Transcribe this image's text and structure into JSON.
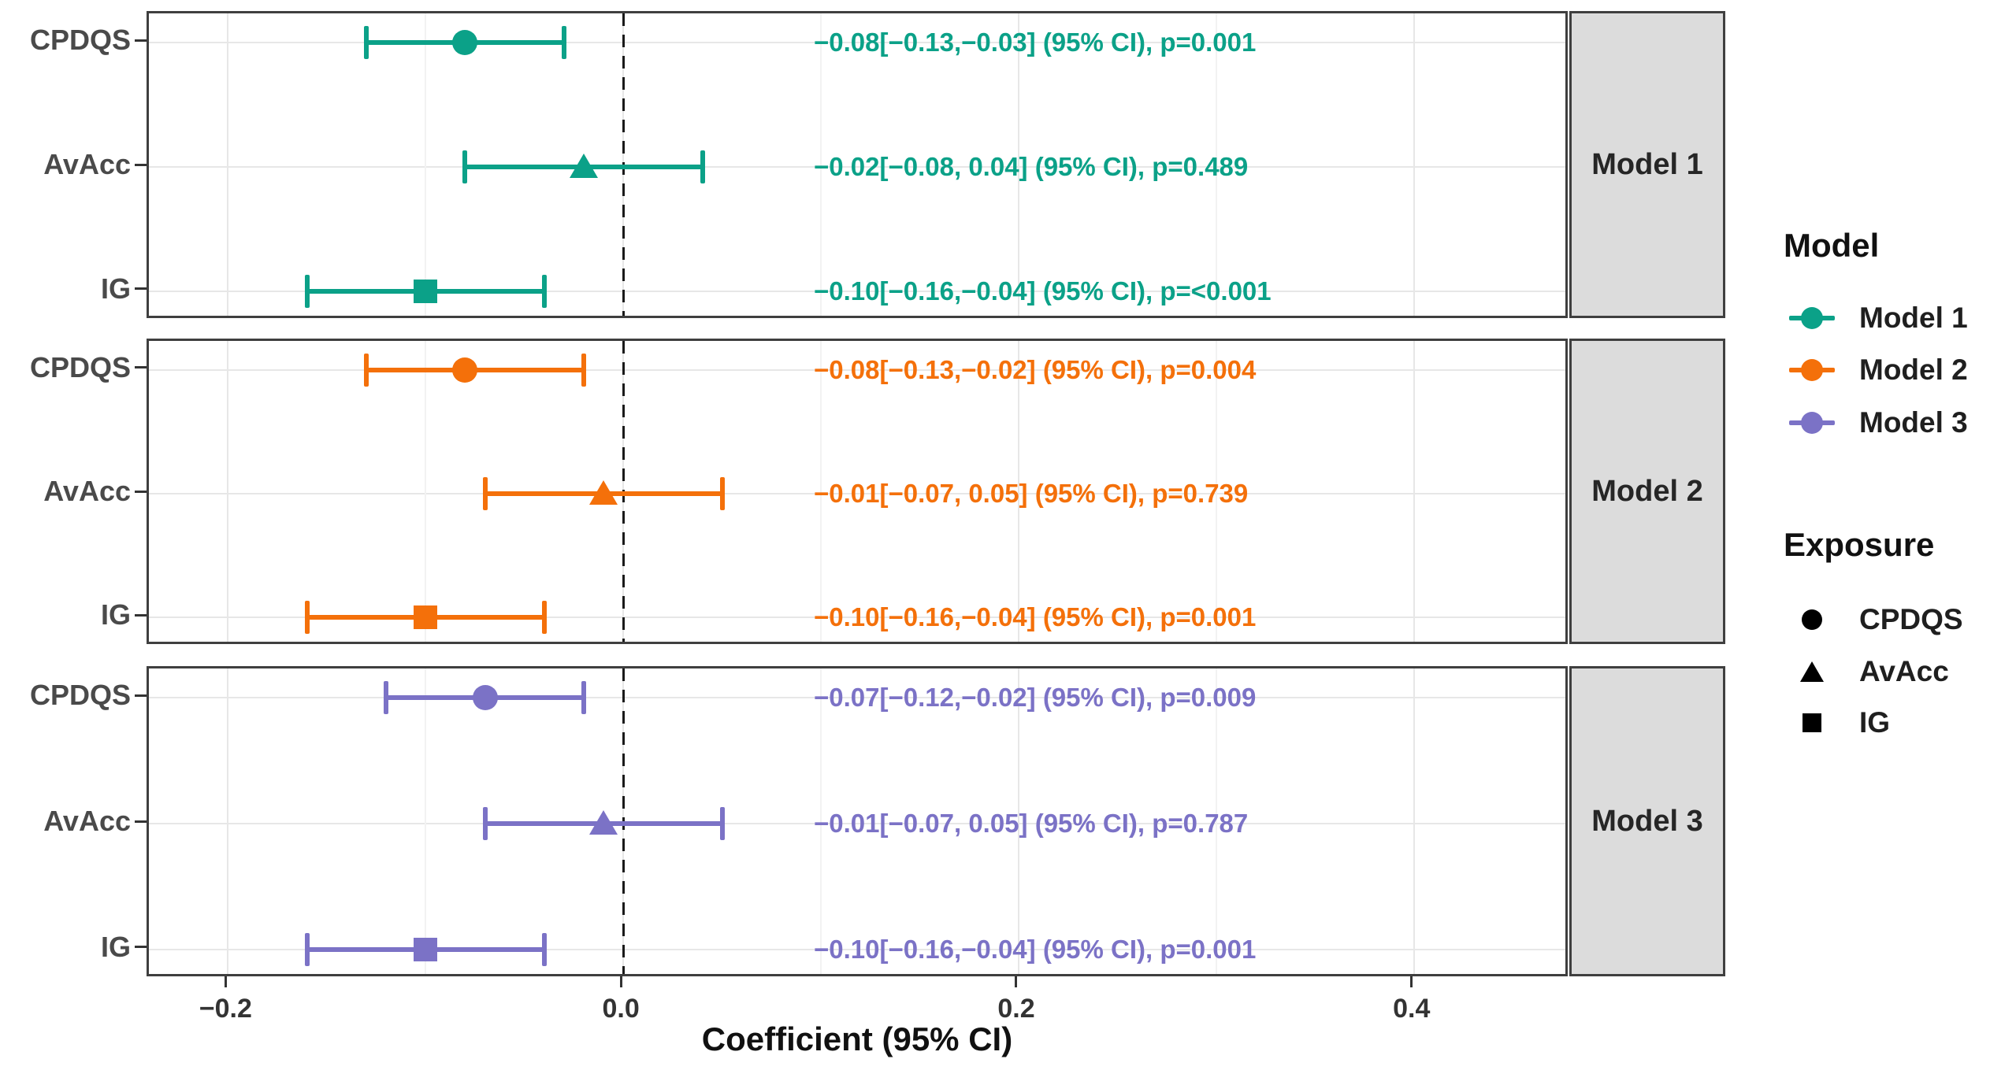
{
  "chart_data": {
    "type": "scatter",
    "variant": "faceted-forest-plot",
    "title": "",
    "xlabel": "Coefficient (95% CI)",
    "x_tick_labels": [
      "−0.2",
      "0.0",
      "0.2",
      "0.4"
    ],
    "x_tick_values": [
      -0.2,
      0.0,
      0.2,
      0.4
    ],
    "x_minor_gridlines": [
      -0.1,
      0.1,
      0.3
    ],
    "xlim": [
      -0.24,
      0.479
    ],
    "zero_reference_line": 0,
    "grid": true,
    "y_categories": [
      "CPDQS",
      "AvAcc",
      "IG"
    ],
    "panels": [
      {
        "facet_label": "Model 1",
        "color": "#0ba188",
        "rows": [
          {
            "exposure": "CPDQS",
            "shape": "circle",
            "estimate": -0.08,
            "ci_low": -0.13,
            "ci_high": -0.03,
            "p": "0.001",
            "annotation": "−0.08[−0.13,−0.03] (95% CI), p=0.001"
          },
          {
            "exposure": "AvAcc",
            "shape": "triangle",
            "estimate": -0.02,
            "ci_low": -0.08,
            "ci_high": 0.04,
            "p": "0.489",
            "annotation": "−0.02[−0.08, 0.04] (95% CI), p=0.489"
          },
          {
            "exposure": "IG",
            "shape": "square",
            "estimate": -0.1,
            "ci_low": -0.16,
            "ci_high": -0.04,
            "p": "<0.001",
            "annotation": "−0.10[−0.16,−0.04] (95% CI), p=<0.001"
          }
        ]
      },
      {
        "facet_label": "Model 2",
        "color": "#f4700a",
        "rows": [
          {
            "exposure": "CPDQS",
            "shape": "circle",
            "estimate": -0.08,
            "ci_low": -0.13,
            "ci_high": -0.02,
            "p": "0.004",
            "annotation": "−0.08[−0.13,−0.02] (95% CI), p=0.004"
          },
          {
            "exposure": "AvAcc",
            "shape": "triangle",
            "estimate": -0.01,
            "ci_low": -0.07,
            "ci_high": 0.05,
            "p": "0.739",
            "annotation": "−0.01[−0.07, 0.05] (95% CI), p=0.739"
          },
          {
            "exposure": "IG",
            "shape": "square",
            "estimate": -0.1,
            "ci_low": -0.16,
            "ci_high": -0.04,
            "p": "0.001",
            "annotation": "−0.10[−0.16,−0.04] (95% CI), p=0.001"
          }
        ]
      },
      {
        "facet_label": "Model 3",
        "color": "#7b72c6",
        "rows": [
          {
            "exposure": "CPDQS",
            "shape": "circle",
            "estimate": -0.07,
            "ci_low": -0.12,
            "ci_high": -0.02,
            "p": "0.009",
            "annotation": "−0.07[−0.12,−0.02] (95% CI), p=0.009"
          },
          {
            "exposure": "AvAcc",
            "shape": "triangle",
            "estimate": -0.01,
            "ci_low": -0.07,
            "ci_high": 0.05,
            "p": "0.787",
            "annotation": "−0.01[−0.07, 0.05] (95% CI), p=0.787"
          },
          {
            "exposure": "IG",
            "shape": "square",
            "estimate": -0.1,
            "ci_low": -0.16,
            "ci_high": -0.04,
            "p": "0.001",
            "annotation": "−0.10[−0.16,−0.04] (95% CI), p=0.001"
          }
        ]
      }
    ],
    "legend": {
      "model": {
        "title": "Model",
        "items": [
          {
            "label": "Model 1",
            "color": "#0ba188"
          },
          {
            "label": "Model 2",
            "color": "#f4700a"
          },
          {
            "label": "Model 3",
            "color": "#7b72c6"
          }
        ]
      },
      "exposure": {
        "title": "Exposure",
        "glyph_color": "#000000",
        "items": [
          {
            "label": "CPDQS",
            "shape": "circle"
          },
          {
            "label": "AvAcc",
            "shape": "triangle"
          },
          {
            "label": "IG",
            "shape": "square"
          }
        ]
      }
    },
    "colors": {
      "panel_border": "#3f3f3f",
      "strip_background": "#dcdcdc",
      "axis_text": "#333333",
      "y_label_text": "#4a4a4a",
      "major_grid": "#e7e7e7",
      "minor_grid": "#f2f2f2",
      "zero_line": "#1a1a1a"
    }
  }
}
